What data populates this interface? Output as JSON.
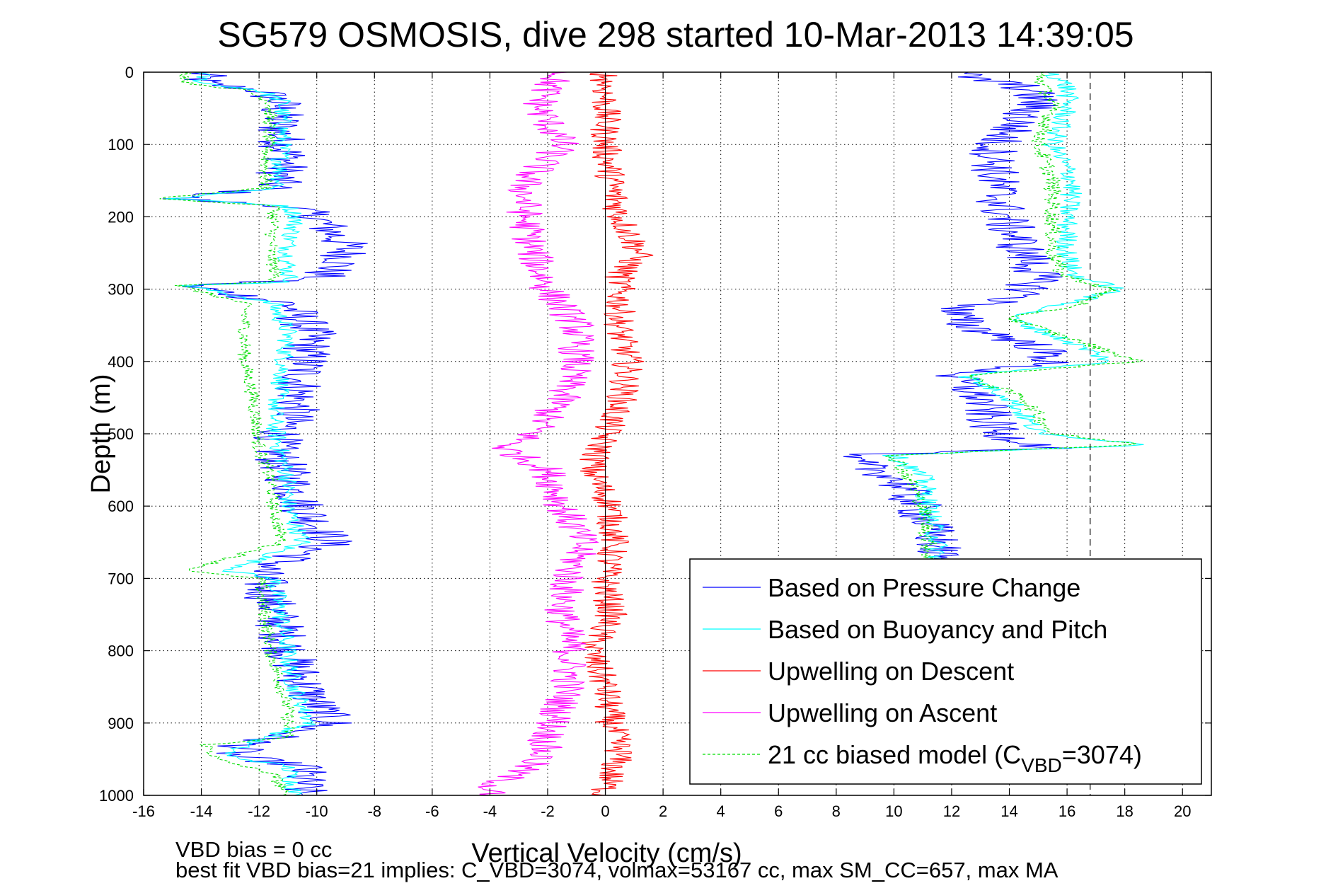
{
  "chart_data": {
    "type": "line",
    "title": "SG579 OSMOSIS, dive 298 started 10-Mar-2013 14:39:05",
    "xlabel": "Vertical Velocity (cm/s)",
    "ylabel": "Depth (m)",
    "xlim": [
      -16,
      21
    ],
    "ylim": [
      0,
      1000
    ],
    "y_reversed": true,
    "grid": true,
    "x_ticks": [
      -16,
      -14,
      -12,
      -10,
      -8,
      -6,
      -4,
      -2,
      0,
      2,
      4,
      6,
      8,
      10,
      12,
      14,
      16,
      18,
      20
    ],
    "y_ticks": [
      0,
      100,
      200,
      300,
      400,
      500,
      600,
      700,
      800,
      900,
      1000
    ],
    "reference_lines": {
      "solid_x": 0,
      "dashed_x": 16.8
    },
    "legend": {
      "placement": "lower-right",
      "entries": [
        {
          "label": "Based on Pressure Change",
          "color": "#0000ff",
          "dashed": false
        },
        {
          "label": "Based on Buoyancy and Pitch",
          "color": "#00ffff",
          "dashed": false
        },
        {
          "label": "Upwelling on Descent",
          "color": "#ff0000",
          "dashed": false
        },
        {
          "label": "Upwelling on Ascent",
          "color": "#ff00ff",
          "dashed": false
        },
        {
          "label_main": "21 cc biased model (C",
          "label_sub": "VBD",
          "label_tail": "=3074)",
          "color": "#00dd00",
          "dashed": true
        }
      ]
    },
    "series": [
      {
        "name": "Based on Pressure Change",
        "color": "#0000ff",
        "noise": 0.9,
        "depth": [
          0,
          15,
          25,
          40,
          80,
          120,
          160,
          175,
          185,
          200,
          240,
          260,
          285,
          295,
          320,
          360,
          420,
          470,
          520,
          560,
          600,
          650,
          690,
          740,
          800,
          860,
          900,
          930,
          945,
          960,
          990,
          1000
        ],
        "values": [
          -14,
          -14,
          -12,
          -11.3,
          -11.3,
          -11,
          -11.5,
          -15,
          -11,
          -10,
          -9,
          -9,
          -10,
          -14.5,
          -11,
          -10.2,
          -10.5,
          -10.8,
          -11.5,
          -11,
          -10.5,
          -9.5,
          -12,
          -11.5,
          -11,
          -10.3,
          -9.5,
          -12.5,
          -13,
          -10.5,
          -10.5,
          -10.5
        ]
      },
      {
        "name": "Based on Buoyancy and Pitch",
        "color": "#00ffff",
        "noise": 0.35,
        "depth": [
          0,
          15,
          25,
          40,
          100,
          160,
          175,
          185,
          200,
          240,
          280,
          290,
          295,
          320,
          360,
          420,
          480,
          520,
          560,
          600,
          650,
          690,
          700,
          760,
          850,
          900,
          930,
          945,
          960,
          990,
          1000
        ],
        "values": [
          -14,
          -14,
          -12,
          -11.2,
          -11.2,
          -11.3,
          -15,
          -11,
          -10.7,
          -11,
          -11,
          -10.8,
          -14.5,
          -11.5,
          -11,
          -11.2,
          -11.5,
          -11.3,
          -11,
          -11,
          -10.5,
          -13,
          -11.5,
          -11.2,
          -10.8,
          -10.2,
          -12.5,
          -13.2,
          -11,
          -10.8,
          -10.8
        ]
      },
      {
        "name": "21 cc biased model (CVBD=3074)",
        "color": "#00dd00",
        "dashed": true,
        "noise": 0.25,
        "depth": [
          0,
          15,
          25,
          40,
          100,
          160,
          175,
          185,
          200,
          250,
          290,
          295,
          320,
          400,
          450,
          520,
          560,
          600,
          650,
          690,
          700,
          750,
          800,
          880,
          920,
          930,
          950,
          970,
          990,
          1000
        ],
        "values": [
          -14.5,
          -14.5,
          -12.5,
          -11.6,
          -11.7,
          -11.8,
          -15.5,
          -11.4,
          -11.5,
          -11.6,
          -11.4,
          -14.8,
          -12.5,
          -12.5,
          -12.2,
          -12,
          -11.6,
          -11.5,
          -11.2,
          -14.5,
          -12,
          -11.8,
          -11.6,
          -11,
          -11,
          -13.8,
          -13.5,
          -11.5,
          -11.2,
          -11.2
        ]
      },
      {
        "name": "Upwelling on Descent",
        "color": "#ff0000",
        "noise": 0.55,
        "depth": [
          0,
          40,
          100,
          150,
          200,
          250,
          280,
          320,
          360,
          400,
          450,
          500,
          550,
          600,
          650,
          700,
          750,
          800,
          850,
          900,
          940,
          990,
          1000
        ],
        "values": [
          0,
          0,
          0,
          0.2,
          0.5,
          1.2,
          0.5,
          0.5,
          0.5,
          0.8,
          0.6,
          0,
          -0.5,
          0.2,
          0.3,
          0,
          0.2,
          -0.5,
          0,
          0.2,
          0.5,
          0,
          0
        ]
      },
      {
        "name": "Upwelling on Ascent",
        "color": "#ff00ff",
        "noise": 0.65,
        "depth": [
          0,
          20,
          50,
          100,
          150,
          200,
          250,
          300,
          350,
          400,
          450,
          500,
          520,
          550,
          600,
          650,
          700,
          750,
          800,
          850,
          900,
          950,
          990,
          1000
        ],
        "values": [
          -1.5,
          -2,
          -2.3,
          -1.5,
          -2.8,
          -2.8,
          -2.5,
          -2,
          -1,
          -1,
          -1.5,
          -2.5,
          -3.5,
          -2,
          -1.5,
          -0.8,
          -1.3,
          -1.5,
          -1.2,
          -1.3,
          -1.8,
          -2.3,
          -4,
          -4
        ]
      },
      {
        "name": "Based on Pressure Change (ascent)",
        "color": "#0000ff",
        "noise": 0.9,
        "depth": [
          0,
          10,
          20,
          40,
          100,
          150,
          200,
          250,
          280,
          310,
          330,
          350,
          380,
          400,
          420,
          450,
          500,
          520,
          530,
          560,
          600,
          650,
          680
        ],
        "values": [
          12,
          13,
          14.5,
          15,
          13.5,
          13.5,
          13.8,
          14.5,
          15,
          14.5,
          12,
          12.5,
          15,
          15.5,
          12,
          13,
          13.5,
          15.5,
          8,
          10,
          10.8,
          11.5,
          11.5
        ]
      },
      {
        "name": "Based on Buoyancy and Pitch (ascent)",
        "color": "#00ffff",
        "noise": 0.4,
        "depth": [
          0,
          20,
          50,
          100,
          150,
          200,
          250,
          280,
          300,
          320,
          340,
          380,
          400,
          420,
          450,
          500,
          515,
          530,
          560,
          600,
          650,
          680
        ],
        "values": [
          15.5,
          16,
          16,
          15.5,
          16.2,
          16,
          16,
          16.2,
          17.8,
          16,
          14,
          16.5,
          17.5,
          12.5,
          14,
          15,
          19,
          10,
          11,
          11.2,
          11.5,
          11.5
        ]
      },
      {
        "name": "21 cc biased model (ascent)",
        "color": "#00dd00",
        "dashed": true,
        "noise": 0.3,
        "depth": [
          0,
          20,
          50,
          100,
          150,
          200,
          250,
          280,
          300,
          320,
          340,
          380,
          400,
          420,
          450,
          500,
          515,
          530,
          560,
          600,
          650,
          680
        ],
        "values": [
          15,
          15.2,
          15.5,
          15,
          15.5,
          15.5,
          15.5,
          15.8,
          17.5,
          16.5,
          14,
          17,
          18.5,
          12.5,
          14.5,
          15.5,
          18.5,
          10,
          10.5,
          11,
          11.2,
          11.2
        ]
      }
    ]
  },
  "footer": {
    "line1": "VBD bias = 0 cc",
    "line2": "best fit VBD bias=21 implies: C_VBD=3074, volmax=53167 cc, max SM_CC=657, max MA"
  }
}
